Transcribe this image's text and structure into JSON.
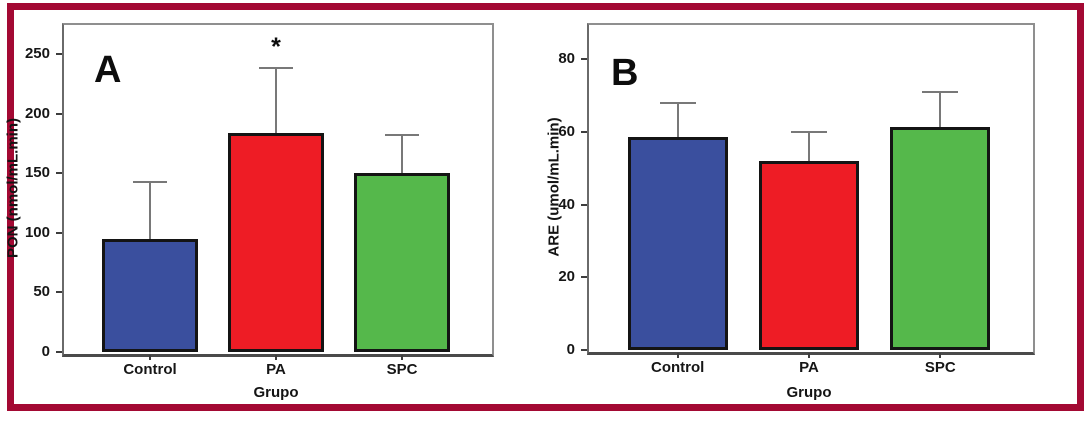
{
  "figure": {
    "border_color": "#A30933",
    "background_color": "#ffffff",
    "outline_color": "#141414",
    "error_bar_color": "#787878"
  },
  "chart_data": [
    {
      "type": "bar",
      "panel_label": "A",
      "ylabel": "PON (nmol/mL.min)",
      "xlabel": "Grupo",
      "categories": [
        "Control",
        "PA",
        "SPC"
      ],
      "values": [
        95,
        184,
        150
      ],
      "error_top": [
        143,
        238,
        182
      ],
      "bar_colors": [
        "#3A4F9E",
        "#EE1C25",
        "#55B84B"
      ],
      "yticks": [
        0,
        50,
        100,
        150,
        200,
        250
      ],
      "ylim": [
        0,
        276
      ],
      "grid": false,
      "legend": null,
      "annotations": [
        {
          "text": "*",
          "category": "PA"
        }
      ]
    },
    {
      "type": "bar",
      "panel_label": "B",
      "ylabel": "ARE (umol/mL.min)",
      "xlabel": "Grupo",
      "categories": [
        "Control",
        "PA",
        "SPC"
      ],
      "values": [
        58.5,
        52,
        61.5
      ],
      "error_top": [
        68,
        60,
        71
      ],
      "bar_colors": [
        "#3A4F9E",
        "#EE1C25",
        "#55B84B"
      ],
      "yticks": [
        0,
        20,
        40,
        60,
        80
      ],
      "ylim": [
        0,
        90
      ],
      "grid": false,
      "legend": null,
      "annotations": []
    }
  ]
}
